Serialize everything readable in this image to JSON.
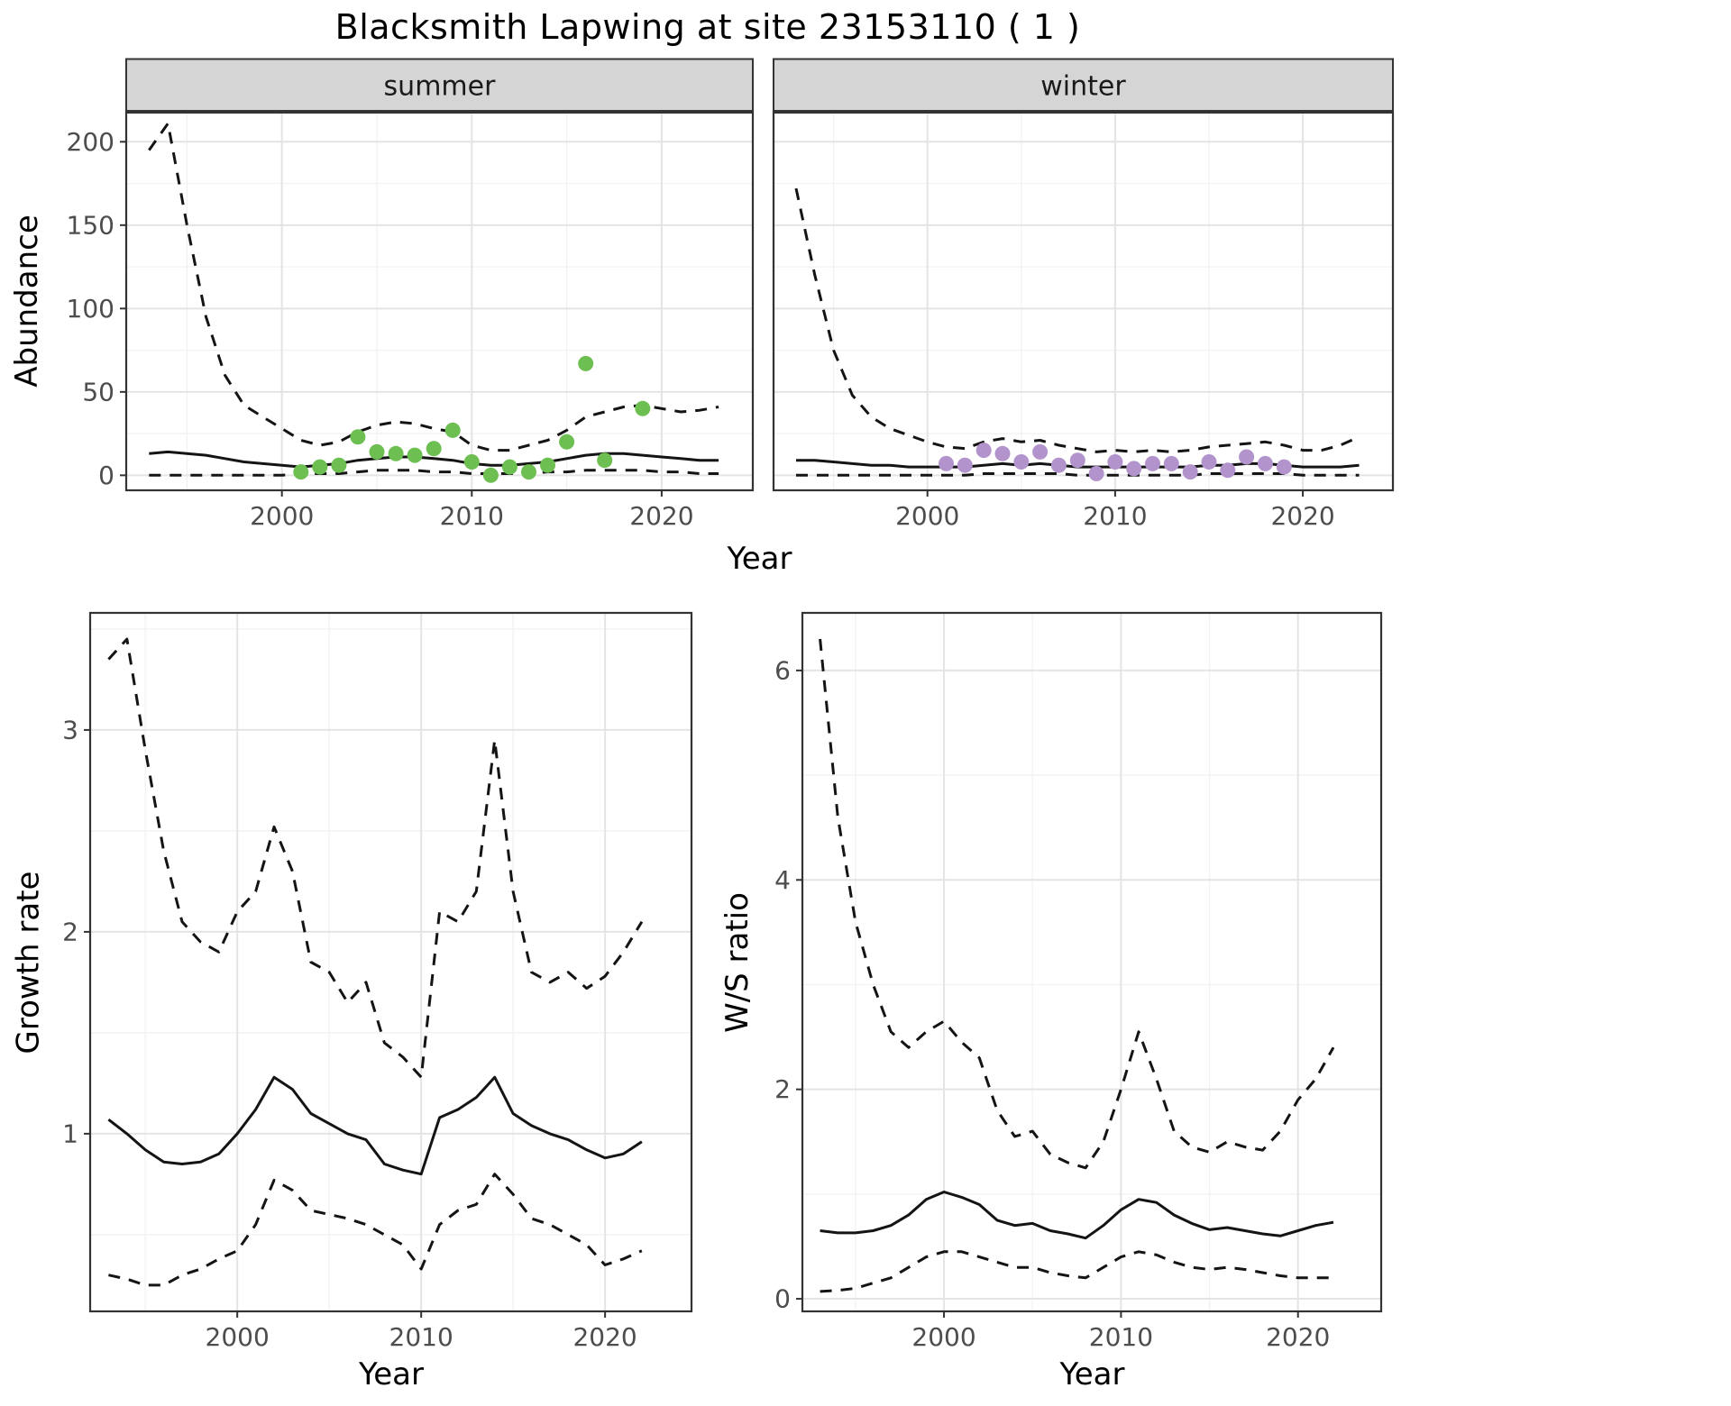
{
  "title": "Blacksmith Lapwing at site 23153110 ( 1 )",
  "labels": {
    "abundance_y": "Abundance",
    "top_x": "Year",
    "growth_y": "Growth rate",
    "growth_x": "Year",
    "ws_y": "W/S ratio",
    "ws_x": "Year"
  },
  "colors": {
    "summer_points": "#6dbf51",
    "winter_points": "#b293cc",
    "line": "#141414",
    "grid_major": "#e4e4e4",
    "grid_minor": "#f1f1f1",
    "strip_bg": "#d5d5d5",
    "panel_border": "#333333",
    "tick_text": "#4d4d4d"
  },
  "chart_data": [
    {
      "id": "abundance_summer",
      "type": "line",
      "facet_label": "summer",
      "xlabel": "Year",
      "ylabel": "Abundance",
      "xlim": [
        1991.8,
        2024.8
      ],
      "ylim": [
        -9,
        218
      ],
      "xticks": [
        2000,
        2010,
        2020
      ],
      "yticks": [
        0,
        50,
        100,
        150,
        200
      ],
      "x": [
        1993,
        1994,
        1995,
        1996,
        1997,
        1998,
        1999,
        2000,
        2001,
        2002,
        2003,
        2004,
        2005,
        2006,
        2007,
        2008,
        2009,
        2010,
        2011,
        2012,
        2013,
        2014,
        2015,
        2016,
        2017,
        2018,
        2019,
        2020,
        2021,
        2022,
        2023
      ],
      "series": [
        {
          "name": "upper95",
          "style": "dashed",
          "values": [
            195,
            211,
            150,
            95,
            60,
            42,
            35,
            28,
            21,
            18,
            20,
            26,
            30,
            32,
            31,
            28,
            26,
            18,
            15,
            15,
            18,
            21,
            27,
            35,
            38,
            41,
            42,
            40,
            38,
            39,
            41
          ]
        },
        {
          "name": "median",
          "style": "solid",
          "values": [
            13,
            14,
            13,
            12,
            10,
            8,
            7,
            6,
            5,
            6,
            7,
            9,
            10,
            11,
            11,
            10,
            9,
            7,
            6,
            6,
            7,
            8,
            10,
            12,
            13,
            13,
            12,
            11,
            10,
            9,
            9
          ]
        },
        {
          "name": "lower95",
          "style": "dashed",
          "values": [
            0,
            0,
            0,
            0,
            0,
            0,
            0,
            0,
            1,
            1,
            1,
            2,
            3,
            3,
            3,
            2,
            2,
            1,
            1,
            1,
            1,
            2,
            2,
            3,
            3,
            3,
            3,
            2,
            2,
            1,
            1
          ]
        }
      ],
      "points": {
        "name": "observed_counts",
        "color_key": "summer_points",
        "x": [
          2001,
          2002,
          2003,
          2004,
          2005,
          2006,
          2007,
          2008,
          2009,
          2010,
          2011,
          2012,
          2013,
          2014,
          2015,
          2016,
          2017,
          2019
        ],
        "y": [
          2,
          5,
          6,
          23,
          14,
          13,
          12,
          16,
          27,
          8,
          0,
          5,
          2,
          6,
          20,
          67,
          9,
          40
        ]
      }
    },
    {
      "id": "abundance_winter",
      "type": "line",
      "facet_label": "winter",
      "xlabel": "Year",
      "ylabel": "Abundance",
      "xlim": [
        1991.8,
        2024.8
      ],
      "ylim": [
        -9,
        218
      ],
      "xticks": [
        2000,
        2010,
        2020
      ],
      "yticks": [
        0,
        50,
        100,
        150,
        200
      ],
      "x": [
        1993,
        1994,
        1995,
        1996,
        1997,
        1998,
        1999,
        2000,
        2001,
        2002,
        2003,
        2004,
        2005,
        2006,
        2007,
        2008,
        2009,
        2010,
        2011,
        2012,
        2013,
        2014,
        2015,
        2016,
        2017,
        2018,
        2019,
        2020,
        2021,
        2022,
        2023
      ],
      "series": [
        {
          "name": "upper95",
          "style": "dashed",
          "values": [
            172,
            120,
            75,
            48,
            35,
            28,
            24,
            20,
            17,
            16,
            20,
            22,
            20,
            21,
            18,
            16,
            14,
            15,
            14,
            15,
            14,
            15,
            17,
            18,
            19,
            20,
            18,
            15,
            15,
            18,
            23
          ]
        },
        {
          "name": "median",
          "style": "solid",
          "values": [
            9,
            9,
            8,
            7,
            6,
            6,
            5,
            5,
            5,
            5,
            6,
            7,
            6,
            7,
            6,
            5,
            5,
            5,
            5,
            5,
            5,
            5,
            6,
            6,
            7,
            7,
            6,
            5,
            5,
            5,
            6
          ]
        },
        {
          "name": "lower95",
          "style": "dashed",
          "values": [
            0,
            0,
            0,
            0,
            0,
            0,
            0,
            0,
            0,
            0,
            1,
            1,
            1,
            1,
            1,
            0,
            0,
            0,
            0,
            0,
            0,
            0,
            1,
            1,
            1,
            1,
            1,
            0,
            0,
            0,
            0
          ]
        }
      ],
      "points": {
        "name": "observed_counts",
        "color_key": "winter_points",
        "x": [
          2001,
          2002,
          2003,
          2004,
          2005,
          2006,
          2007,
          2008,
          2009,
          2010,
          2011,
          2012,
          2013,
          2014,
          2015,
          2016,
          2017,
          2018,
          2019
        ],
        "y": [
          7,
          6,
          15,
          13,
          8,
          14,
          6,
          9,
          1,
          8,
          4,
          7,
          7,
          2,
          8,
          3,
          11,
          7,
          5
        ]
      }
    },
    {
      "id": "growth_rate",
      "type": "line",
      "facet_label": "",
      "xlabel": "Year",
      "ylabel": "Growth rate",
      "xlim": [
        1992,
        2024.7
      ],
      "ylim": [
        0.12,
        3.58
      ],
      "xticks": [
        2000,
        2010,
        2020
      ],
      "yticks": [
        1,
        2,
        3
      ],
      "x": [
        1993,
        1994,
        1995,
        1996,
        1997,
        1998,
        1999,
        2000,
        2001,
        2002,
        2003,
        2004,
        2005,
        2006,
        2007,
        2008,
        2009,
        2010,
        2011,
        2012,
        2013,
        2014,
        2015,
        2016,
        2017,
        2018,
        2019,
        2020,
        2021,
        2022
      ],
      "series": [
        {
          "name": "upper95",
          "style": "dashed",
          "values": [
            3.35,
            3.45,
            2.9,
            2.4,
            2.05,
            1.95,
            1.9,
            2.1,
            2.2,
            2.52,
            2.3,
            1.85,
            1.8,
            1.65,
            1.75,
            1.45,
            1.38,
            1.28,
            2.1,
            2.05,
            2.2,
            2.95,
            2.2,
            1.8,
            1.75,
            1.8,
            1.72,
            1.78,
            1.9,
            2.05
          ]
        },
        {
          "name": "median",
          "style": "solid",
          "values": [
            1.07,
            1.0,
            0.92,
            0.86,
            0.85,
            0.86,
            0.9,
            1.0,
            1.12,
            1.28,
            1.22,
            1.1,
            1.05,
            1.0,
            0.97,
            0.85,
            0.82,
            0.8,
            1.08,
            1.12,
            1.18,
            1.28,
            1.1,
            1.04,
            1.0,
            0.97,
            0.92,
            0.88,
            0.9,
            0.96
          ]
        },
        {
          "name": "lower95",
          "style": "dashed",
          "values": [
            0.3,
            0.28,
            0.25,
            0.25,
            0.3,
            0.33,
            0.38,
            0.42,
            0.55,
            0.77,
            0.72,
            0.62,
            0.6,
            0.58,
            0.55,
            0.5,
            0.45,
            0.33,
            0.55,
            0.62,
            0.65,
            0.8,
            0.7,
            0.58,
            0.55,
            0.5,
            0.45,
            0.35,
            0.38,
            0.42
          ]
        }
      ]
    },
    {
      "id": "ws_ratio",
      "type": "line",
      "facet_label": "",
      "xlabel": "Year",
      "ylabel": "W/S ratio",
      "xlim": [
        1992,
        2024.7
      ],
      "ylim": [
        -0.12,
        6.55
      ],
      "xticks": [
        2000,
        2010,
        2020
      ],
      "yticks": [
        0,
        2,
        4,
        6
      ],
      "x": [
        1993,
        1994,
        1995,
        1996,
        1997,
        1998,
        1999,
        2000,
        2001,
        2002,
        2003,
        2004,
        2005,
        2006,
        2007,
        2008,
        2009,
        2010,
        2011,
        2012,
        2013,
        2014,
        2015,
        2016,
        2017,
        2018,
        2019,
        2020,
        2021,
        2022
      ],
      "series": [
        {
          "name": "upper95",
          "style": "dashed",
          "values": [
            6.3,
            4.6,
            3.6,
            3.0,
            2.55,
            2.4,
            2.55,
            2.65,
            2.45,
            2.3,
            1.8,
            1.55,
            1.6,
            1.38,
            1.3,
            1.25,
            1.5,
            2.0,
            2.55,
            2.1,
            1.6,
            1.45,
            1.4,
            1.5,
            1.45,
            1.42,
            1.6,
            1.9,
            2.1,
            2.4
          ]
        },
        {
          "name": "median",
          "style": "solid",
          "values": [
            0.65,
            0.63,
            0.63,
            0.65,
            0.7,
            0.8,
            0.95,
            1.02,
            0.97,
            0.9,
            0.75,
            0.7,
            0.72,
            0.65,
            0.62,
            0.58,
            0.7,
            0.85,
            0.95,
            0.92,
            0.8,
            0.72,
            0.66,
            0.68,
            0.65,
            0.62,
            0.6,
            0.65,
            0.7,
            0.73
          ]
        },
        {
          "name": "lower95",
          "style": "dashed",
          "values": [
            0.07,
            0.08,
            0.1,
            0.15,
            0.2,
            0.3,
            0.4,
            0.45,
            0.45,
            0.4,
            0.35,
            0.3,
            0.3,
            0.25,
            0.22,
            0.2,
            0.3,
            0.4,
            0.45,
            0.42,
            0.35,
            0.3,
            0.28,
            0.3,
            0.28,
            0.25,
            0.22,
            0.2,
            0.2,
            0.2
          ]
        }
      ]
    }
  ]
}
